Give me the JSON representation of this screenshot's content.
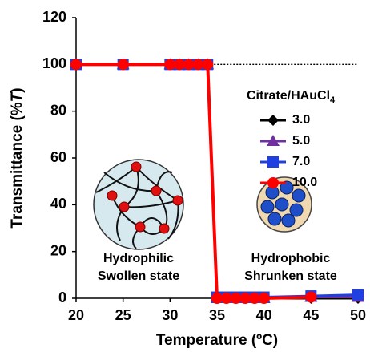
{
  "chart_data": {
    "type": "line",
    "y_label": [
      "Transmittance (%",
      "T",
      ")"
    ],
    "x_label": "Temperature (ºC)",
    "legend_title": {
      "text": "Citrate/HAuCl",
      "sub": "4"
    },
    "x": [
      20,
      25,
      30,
      31,
      32,
      33,
      34,
      35,
      36,
      37,
      38,
      39,
      40,
      45,
      50
    ],
    "series": [
      {
        "name": "3.0",
        "color": "#000000",
        "marker": "diamond",
        "values": [
          100,
          100,
          100,
          100,
          100,
          100,
          100,
          0,
          0,
          0,
          0,
          0,
          0,
          0,
          0
        ]
      },
      {
        "name": "5.0",
        "color": "#7030a0",
        "marker": "triangle",
        "values": [
          100,
          100,
          100,
          100,
          100,
          100,
          100,
          0,
          0,
          0,
          0,
          0,
          0,
          0.5,
          0.5
        ]
      },
      {
        "name": "7.0",
        "color": "#1f3fe0",
        "marker": "square",
        "values": [
          100,
          100,
          100,
          100,
          100,
          100,
          100,
          0.5,
          0.5,
          0.5,
          0.5,
          0.5,
          0.5,
          1,
          1.5
        ]
      },
      {
        "name": "10.0",
        "color": "#ff0000",
        "marker": "circle",
        "values": [
          100,
          100,
          100,
          100,
          100,
          100,
          100,
          0,
          0,
          0,
          0,
          0,
          0,
          0.5,
          null
        ]
      }
    ],
    "reference_line": {
      "y": 100,
      "x": [
        34,
        50
      ]
    },
    "xlim": [
      20,
      50
    ],
    "xticks": [
      20,
      25,
      30,
      35,
      40,
      45,
      50
    ],
    "ylim": [
      0,
      120
    ],
    "yticks": [
      0,
      20,
      40,
      60,
      80,
      100,
      120
    ],
    "annotations": [
      {
        "text": "Hydrophilic",
        "color": "#1f1fbf"
      },
      {
        "text": "Swollen state",
        "color": "#000000"
      },
      {
        "text": "Hydrophobic",
        "color": "#c00000"
      },
      {
        "text": "Shrunken state",
        "color": "#000000"
      }
    ]
  }
}
